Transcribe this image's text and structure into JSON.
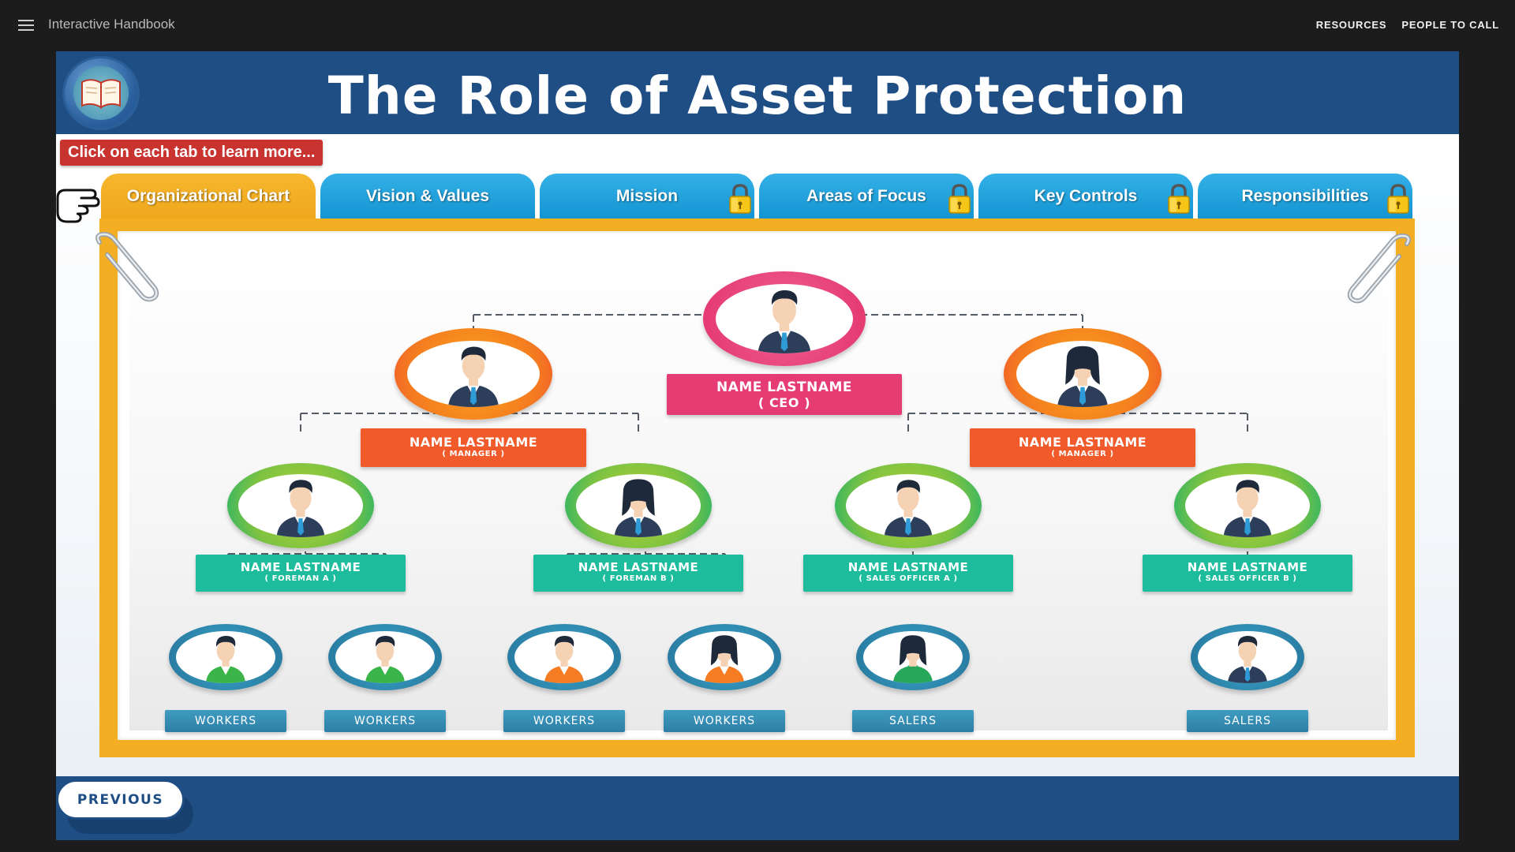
{
  "topbar": {
    "app_title": "Interactive Handbook",
    "nav": [
      {
        "label": "RESOURCES"
      },
      {
        "label": "PEOPLE TO CALL"
      }
    ]
  },
  "header": {
    "title": "The Role of Asset Protection",
    "icon": "book-icon"
  },
  "hint": "Click on each tab to learn more...",
  "tabs": [
    {
      "label": "Organizational Chart",
      "active": true,
      "locked": false
    },
    {
      "label": "Vision & Values",
      "active": false,
      "locked": false
    },
    {
      "label": "Mission",
      "active": false,
      "locked": true
    },
    {
      "label": "Areas of Focus",
      "active": false,
      "locked": true
    },
    {
      "label": "Key Controls",
      "active": false,
      "locked": true
    },
    {
      "label": "Responsibilities",
      "active": false,
      "locked": true
    }
  ],
  "org_chart": {
    "ceo": {
      "name": "NAME LASTNAME",
      "role": "( CEO )",
      "color": "#e53c74"
    },
    "managers": [
      {
        "name": "NAME LASTNAME",
        "role": "( MANAGER )",
        "color": "#f15a2b"
      },
      {
        "name": "NAME LASTNAME",
        "role": "( MANAGER )",
        "color": "#f15a2b"
      }
    ],
    "leads": [
      {
        "name": "NAME LASTNAME",
        "role": "( FOREMAN A )",
        "color": "#1cbc9c"
      },
      {
        "name": "NAME LASTNAME",
        "role": "( FOREMAN B )",
        "color": "#1cbc9c"
      },
      {
        "name": "NAME LASTNAME",
        "role": "( SALES OFFICER A )",
        "color": "#1cbc9c"
      },
      {
        "name": "NAME LASTNAME",
        "role": "( SALES OFFICER B )",
        "color": "#1cbc9c"
      }
    ],
    "staff": [
      {
        "label": "WORKERS"
      },
      {
        "label": "WORKERS"
      },
      {
        "label": "WORKERS"
      },
      {
        "label": "WORKERS"
      },
      {
        "label": "SALERS"
      },
      {
        "label": "SALERS"
      }
    ]
  },
  "footer": {
    "previous_label": "PREVIOUS"
  },
  "colors": {
    "header_blue": "#1f4e85",
    "tab_blue": "#1a9bd7",
    "tab_active": "#f3ae24",
    "hint_red": "#c8322f",
    "staff_blue": "#3b90b4"
  }
}
